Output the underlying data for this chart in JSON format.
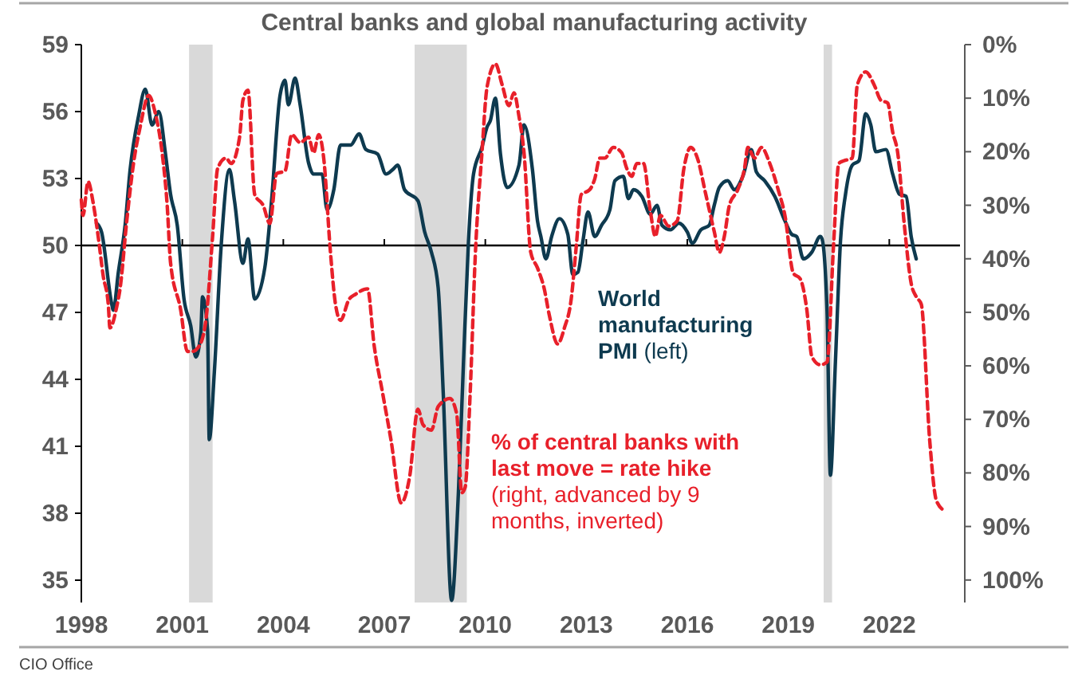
{
  "chart_data": {
    "type": "line",
    "title": "Central banks and global manufacturing activity",
    "annotations": [
      "CIO Office"
    ],
    "xlim": [
      1998,
      2024.1
    ],
    "xticks": [
      1998,
      2001,
      2004,
      2007,
      2010,
      2013,
      2016,
      2019,
      2022
    ],
    "ylim": [
      34,
      59
    ],
    "yticks": [
      35,
      38,
      41,
      44,
      47,
      50,
      53,
      56,
      59
    ],
    "y2lim": [
      104.2,
      0
    ],
    "y2ticks": [
      {
        "value": 0,
        "label": "0%"
      },
      {
        "value": 10,
        "label": "10%"
      },
      {
        "value": 20,
        "label": "20%"
      },
      {
        "value": 30,
        "label": "30%"
      },
      {
        "value": 40,
        "label": "40%"
      },
      {
        "value": 50,
        "label": "50%"
      },
      {
        "value": 60,
        "label": "60%"
      },
      {
        "value": 70,
        "label": "70%"
      },
      {
        "value": 80,
        "label": "80%"
      },
      {
        "value": 90,
        "label": "90%"
      },
      {
        "value": 100,
        "label": "100%"
      }
    ],
    "ref_lines": [
      {
        "axis": "y",
        "value": 50,
        "color": "#000000"
      }
    ],
    "bands": [
      {
        "axis": "x",
        "from": 2001.2,
        "to": 2001.9,
        "color": "#d9d9d9"
      },
      {
        "axis": "x",
        "from": 2007.9,
        "to": 2009.45,
        "color": "#d9d9d9"
      },
      {
        "axis": "x",
        "from": 2020.05,
        "to": 2020.3,
        "color": "#d9d9d9"
      }
    ],
    "series": [
      {
        "name": "World manufacturing PMI (left)",
        "color": "#0e3a4f",
        "line_style": "solid",
        "x": [
          1998.45,
          1998.6,
          1998.9,
          1998.95,
          1999.1,
          1999.3,
          1999.45,
          1999.7,
          1999.9,
          2000.1,
          2000.3,
          2000.5,
          2000.65,
          2000.85,
          2001.05,
          2001.25,
          2001.4,
          2001.55,
          2001.6,
          2001.75,
          2001.8,
          2001.95,
          2002.15,
          2002.4,
          2002.55,
          2002.8,
          2002.95,
          2003.15,
          2003.45,
          2003.65,
          2003.9,
          2004.05,
          2004.15,
          2004.35,
          2004.5,
          2004.75,
          2004.9,
          2005.15,
          2005.3,
          2005.5,
          2005.7,
          2006.0,
          2006.25,
          2006.45,
          2006.8,
          2007.05,
          2007.25,
          2007.4,
          2007.6,
          2008.0,
          2008.2,
          2008.4,
          2008.6,
          2008.75,
          2009.0,
          2009.2,
          2009.35,
          2009.5,
          2009.65,
          2009.9,
          2010.05,
          2010.15,
          2010.3,
          2010.45,
          2010.65,
          2011.0,
          2011.15,
          2011.4,
          2011.55,
          2011.65,
          2011.8,
          2011.97,
          2012.2,
          2012.45,
          2012.6,
          2012.75,
          2012.9,
          2013.05,
          2013.25,
          2013.45,
          2013.7,
          2013.85,
          2014.1,
          2014.25,
          2014.4,
          2014.65,
          2014.9,
          2015.1,
          2015.25,
          2015.5,
          2015.75,
          2016.0,
          2016.15,
          2016.4,
          2016.65,
          2016.8,
          2016.95,
          2017.2,
          2017.4,
          2017.65,
          2017.9,
          2018.05,
          2018.3,
          2018.6,
          2018.9,
          2019.1,
          2019.25,
          2019.45,
          2019.7,
          2019.95,
          2020.0,
          2020.15,
          2020.25,
          2020.4,
          2020.55,
          2020.7,
          2020.9,
          2021.1,
          2021.3,
          2021.45,
          2021.6,
          2021.9,
          2022.1,
          2022.3,
          2022.5,
          2022.65,
          2022.8
        ],
        "values": [
          51.0,
          50.6,
          47.4,
          47.1,
          48.8,
          50.9,
          53.4,
          55.8,
          57.0,
          55.4,
          56.0,
          54.1,
          52.3,
          50.9,
          47.6,
          46.4,
          45.0,
          46.1,
          47.7,
          46.2,
          41.3,
          44.3,
          49.9,
          53.4,
          52.0,
          49.2,
          50.3,
          47.6,
          49.0,
          52.0,
          56.7,
          57.4,
          56.3,
          57.5,
          56.3,
          53.7,
          53.2,
          53.2,
          51.6,
          52.5,
          54.5,
          54.5,
          55.0,
          54.3,
          54.1,
          53.2,
          53.4,
          53.6,
          52.5,
          52.0,
          50.6,
          49.7,
          48.1,
          43.4,
          34.1,
          38.9,
          44.7,
          50.2,
          53.2,
          54.4,
          55.3,
          55.6,
          56.6,
          54.1,
          52.6,
          53.6,
          55.4,
          53.4,
          51.1,
          50.4,
          49.4,
          50.4,
          51.2,
          50.5,
          48.7,
          48.8,
          50.2,
          51.5,
          50.4,
          50.9,
          51.6,
          52.9,
          53.1,
          52.1,
          52.5,
          52.2,
          51.4,
          51.8,
          50.9,
          50.7,
          51.0,
          50.6,
          50.1,
          50.7,
          50.9,
          51.8,
          52.6,
          52.9,
          52.5,
          53.1,
          54.3,
          53.3,
          52.9,
          52.2,
          51.1,
          50.5,
          50.4,
          49.4,
          49.7,
          50.4,
          50.3,
          47.1,
          39.7,
          44.8,
          50.2,
          52.3,
          53.6,
          53.8,
          55.9,
          55.4,
          54.2,
          54.3,
          53.2,
          52.3,
          52.2,
          50.4,
          49.4
        ]
      },
      {
        "name": "% of central banks with last move = rate hike (right, advanced by 9 months, inverted)",
        "color": "#e8202a",
        "axis": "y2",
        "line_style": "dashed",
        "x": [
          1998.0,
          1998.05,
          1998.2,
          1998.35,
          1998.5,
          1998.65,
          1998.8,
          1998.85,
          1999.05,
          1999.15,
          1999.35,
          1999.55,
          1999.75,
          2000.0,
          2000.2,
          2000.4,
          2000.55,
          2000.65,
          2000.95,
          2001.15,
          2001.3,
          2001.5,
          2001.7,
          2001.9,
          2002.05,
          2002.3,
          2002.45,
          2002.7,
          2002.8,
          2002.95,
          2003.15,
          2003.4,
          2003.6,
          2003.8,
          2004.05,
          2004.25,
          2004.5,
          2004.75,
          2004.9,
          2005.05,
          2005.2,
          2005.4,
          2005.55,
          2005.7,
          2005.95,
          2006.15,
          2006.5,
          2006.7,
          2006.95,
          2007.2,
          2007.5,
          2007.75,
          2008.0,
          2008.15,
          2008.4,
          2008.6,
          2008.95,
          2009.15,
          2009.3,
          2009.4,
          2009.55,
          2009.7,
          2009.9,
          2010.05,
          2010.3,
          2010.5,
          2010.7,
          2010.85,
          2011.0,
          2011.15,
          2011.35,
          2011.55,
          2011.75,
          2011.9,
          2012.15,
          2012.35,
          2012.55,
          2012.7,
          2012.85,
          2013.1,
          2013.25,
          2013.4,
          2013.55,
          2013.8,
          2014.05,
          2014.2,
          2014.35,
          2014.5,
          2014.7,
          2014.9,
          2015.05,
          2015.2,
          2015.45,
          2015.7,
          2015.9,
          2016.1,
          2016.3,
          2016.55,
          2016.8,
          2016.95,
          2017.1,
          2017.25,
          2017.5,
          2017.7,
          2017.8,
          2018.0,
          2018.2,
          2018.45,
          2018.7,
          2018.9,
          2019.15,
          2019.35,
          2019.55,
          2019.7,
          2019.95,
          2020.15,
          2020.35,
          2020.5,
          2020.65,
          2020.9,
          2021.05,
          2021.3,
          2021.55,
          2021.75,
          2021.95,
          2022.1,
          2022.25,
          2022.45,
          2022.65,
          2022.8,
          2022.95,
          2023.2,
          2023.4,
          2023.65
        ],
        "values": [
          29.0,
          31.9,
          25.6,
          29.5,
          35.8,
          43.2,
          48.5,
          52.9,
          49.0,
          45.6,
          32.9,
          22.2,
          15.3,
          9.5,
          12.9,
          20.2,
          30.0,
          40.7,
          49.5,
          57.3,
          57.3,
          56.3,
          51.5,
          35.8,
          23.1,
          21.2,
          22.2,
          17.3,
          10.4,
          8.5,
          28.0,
          30.0,
          33.4,
          24.1,
          23.6,
          16.8,
          18.3,
          17.3,
          20.2,
          16.8,
          21.2,
          38.8,
          48.5,
          51.5,
          47.6,
          46.6,
          45.6,
          56.3,
          65.1,
          73.9,
          85.6,
          80.8,
          68.1,
          71.0,
          72.0,
          67.6,
          66.1,
          69.0,
          83.7,
          82.7,
          65.1,
          39.7,
          20.2,
          8.0,
          3.6,
          7.5,
          11.4,
          9.0,
          13.4,
          20.2,
          38.8,
          41.7,
          45.6,
          50.5,
          55.9,
          52.9,
          47.6,
          37.8,
          28.0,
          27.1,
          25.1,
          21.2,
          21.2,
          19.2,
          20.2,
          23.1,
          24.6,
          22.2,
          22.2,
          31.0,
          35.8,
          31.9,
          33.9,
          32.9,
          23.1,
          19.2,
          21.2,
          28.0,
          34.9,
          38.8,
          35.8,
          30.0,
          27.1,
          23.1,
          19.2,
          21.2,
          19.2,
          22.2,
          27.1,
          31.9,
          42.7,
          43.7,
          49.5,
          58.3,
          59.8,
          59.3,
          36.8,
          22.2,
          21.7,
          21.2,
          7.5,
          5.1,
          7.5,
          10.4,
          10.9,
          16.3,
          20.2,
          33.9,
          44.6,
          47.1,
          48.5,
          73.9,
          85.2,
          87.1
        ]
      }
    ]
  }
}
